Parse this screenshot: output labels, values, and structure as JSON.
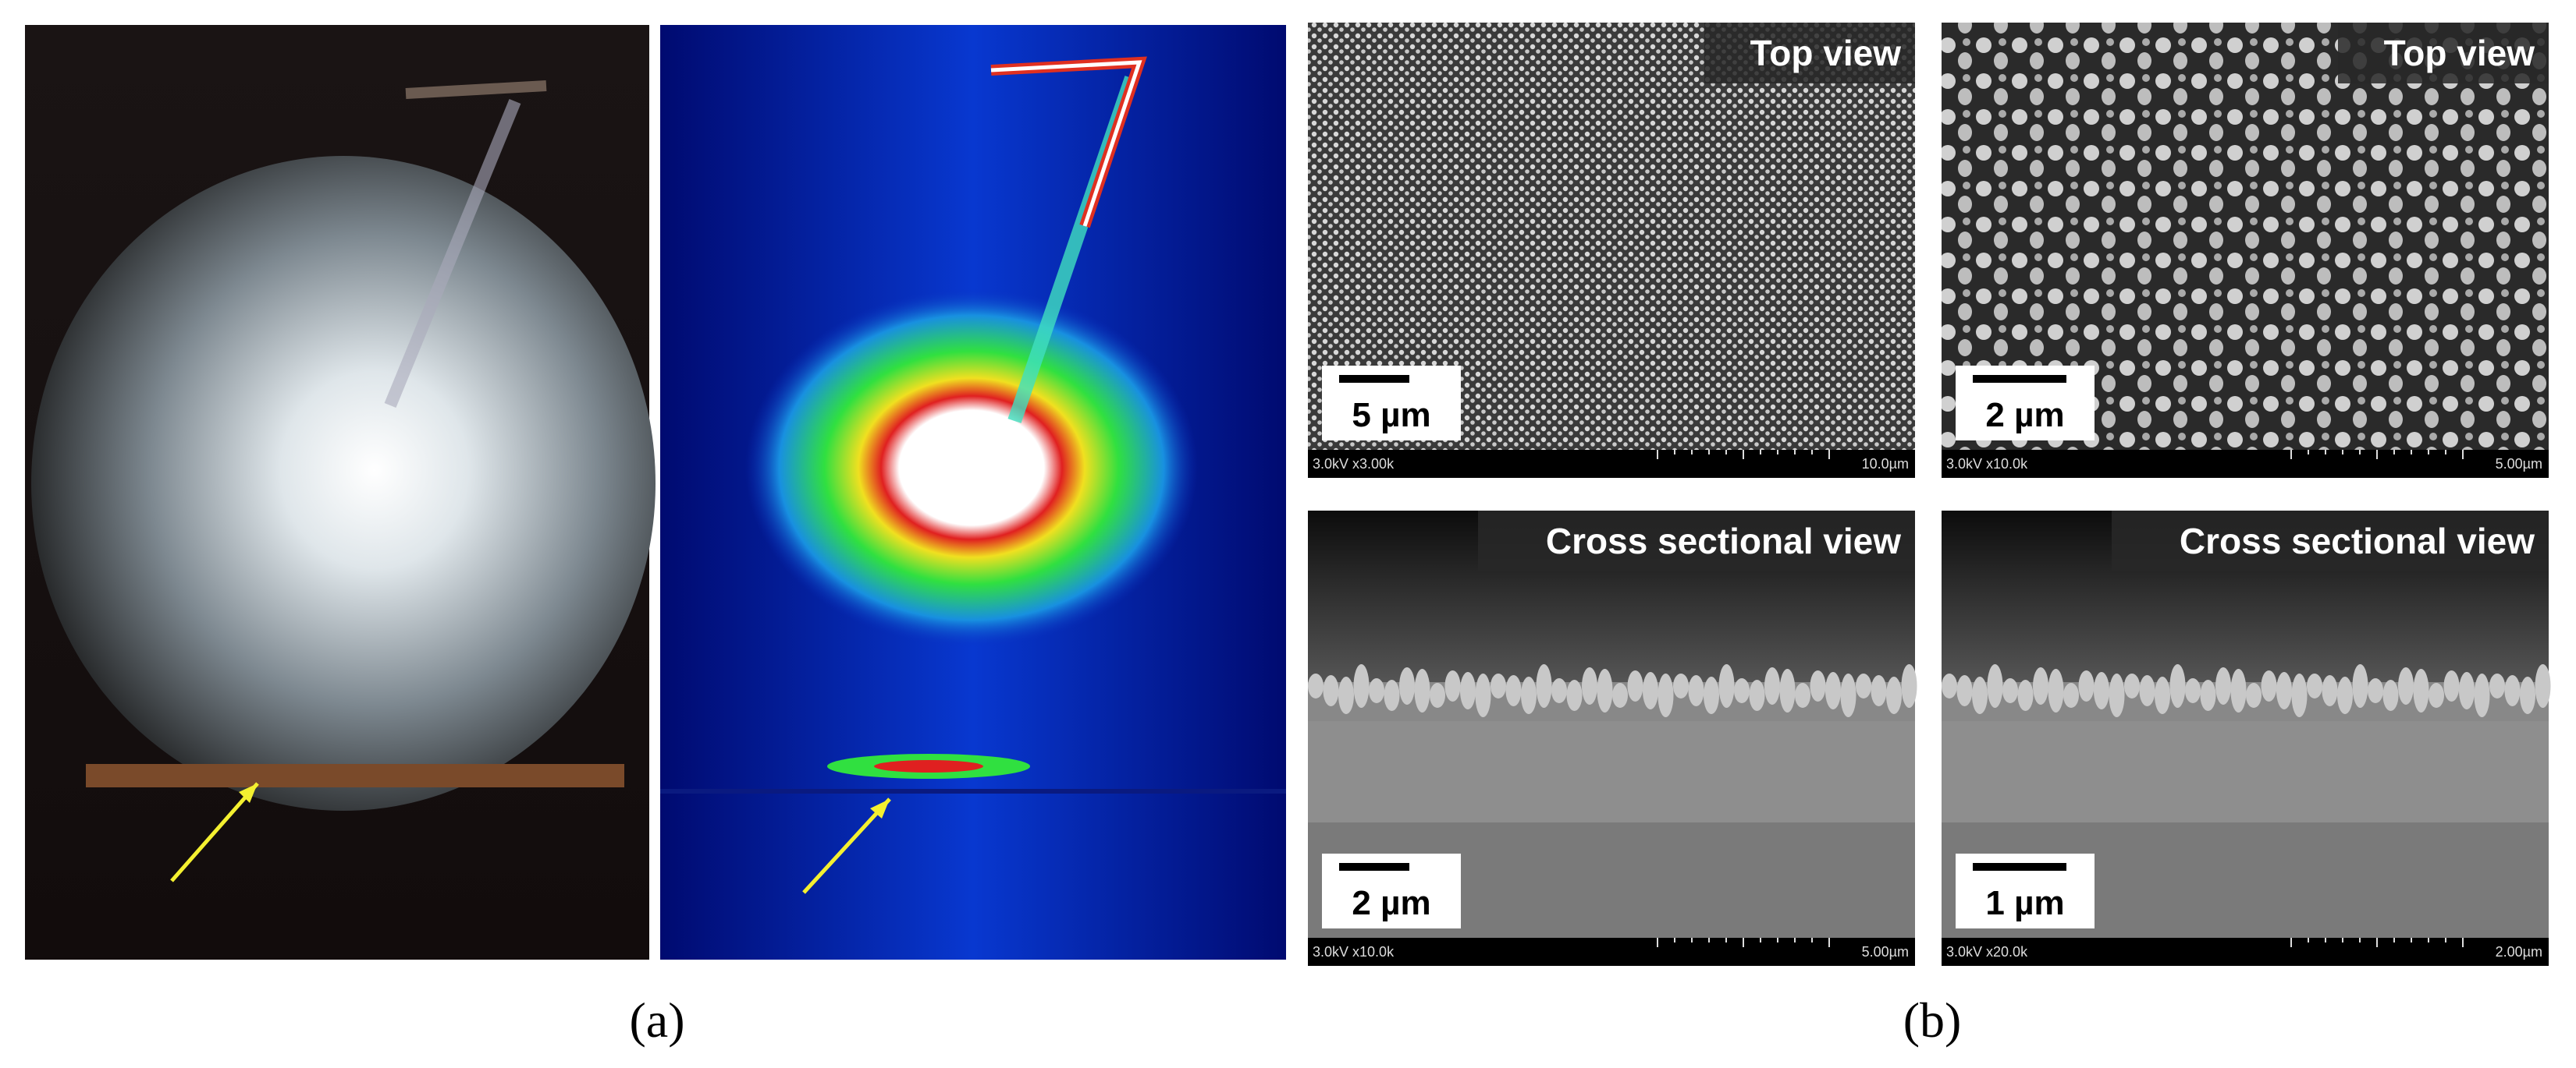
{
  "figure_a": {
    "caption": "(a)"
  },
  "figure_b": {
    "caption": "(b)",
    "images": [
      {
        "title": "Top view",
        "scale_bar": "5 µm",
        "info": "3.0kV x3.00k",
        "field": "10.0µm"
      },
      {
        "title": "Top view",
        "scale_bar": "2 µm",
        "info": "3.0kV x10.0k",
        "field": "5.00µm"
      },
      {
        "title": "Cross sectional view",
        "scale_bar": "2 µm",
        "info": "3.0kV x10.0k",
        "field": "5.00µm"
      },
      {
        "title": "Cross sectional view",
        "scale_bar": "1 µm",
        "info": "3.0kV x20.0k",
        "field": "2.00µm"
      }
    ]
  }
}
